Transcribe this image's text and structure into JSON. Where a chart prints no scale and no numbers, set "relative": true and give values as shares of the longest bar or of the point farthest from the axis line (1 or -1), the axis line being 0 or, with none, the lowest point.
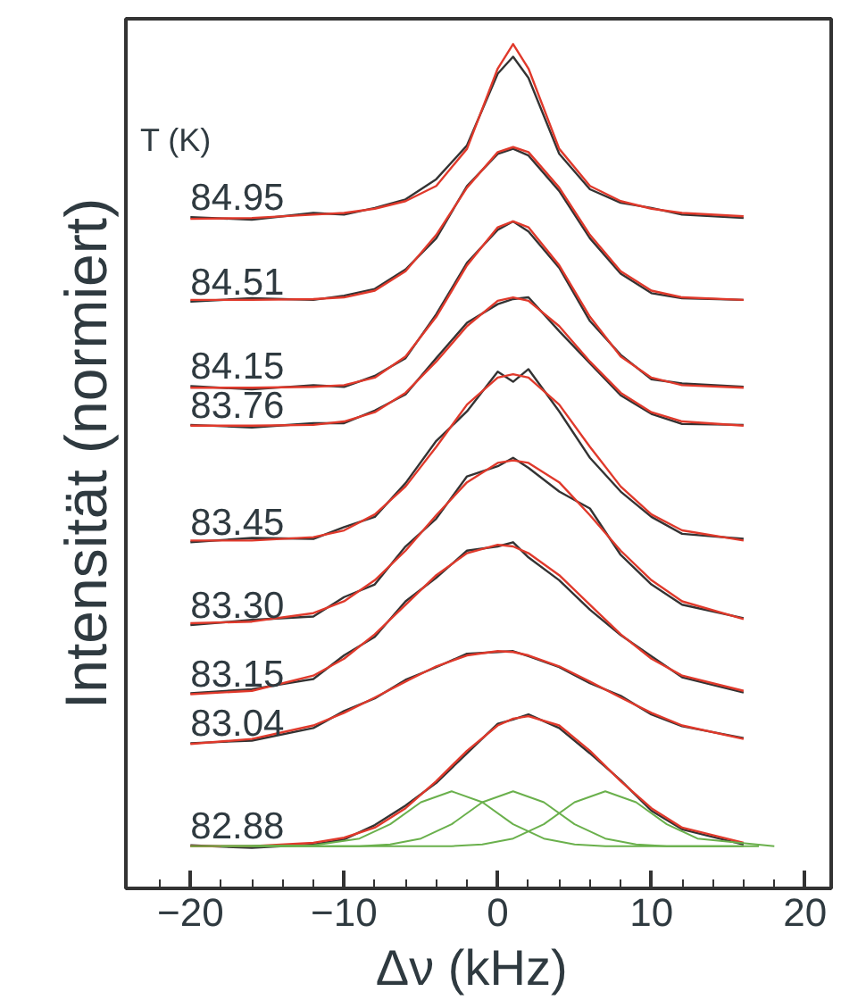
{
  "chart_data": {
    "type": "line",
    "relative": true,
    "xlabel": "Δν  (kHz)",
    "ylabel": "Intensität (normiert)",
    "legend_title": "T (K)",
    "grid": false,
    "line_style": "solid",
    "marker": "none",
    "xlim": [
      -24.2,
      21.7
    ],
    "xticks": [
      -20,
      -10,
      0,
      10,
      20,
      {
        "value": -22,
        "label": null
      },
      {
        "value": -18,
        "label": null
      },
      {
        "value": -16,
        "label": null
      },
      {
        "value": -14,
        "label": null
      },
      {
        "value": -12,
        "label": null
      },
      {
        "value": -8,
        "label": null
      },
      {
        "value": -6,
        "label": null
      },
      {
        "value": -4,
        "label": null
      },
      {
        "value": -2,
        "label": null
      },
      {
        "value": 2,
        "label": null
      },
      {
        "value": 4,
        "label": null
      },
      {
        "value": 6,
        "label": null
      },
      {
        "value": 8,
        "label": null
      },
      {
        "value": 12,
        "label": null
      },
      {
        "value": 14,
        "label": null
      },
      {
        "value": 16,
        "label": null
      },
      {
        "value": 18,
        "label": null
      }
    ],
    "x": [
      -20,
      -16,
      -12,
      -10,
      -8,
      -6,
      -4,
      -2,
      0,
      1,
      2,
      4,
      6,
      8,
      10,
      12,
      16
    ],
    "series": [
      {
        "name": "84.95",
        "color": "#333333",
        "values": [
          0.795,
          0.792,
          0.8,
          0.798,
          0.806,
          0.816,
          0.84,
          0.88,
          0.965,
          0.985,
          0.96,
          0.87,
          0.828,
          0.812,
          0.806,
          0.798,
          0.794
        ]
      },
      {
        "color": "#e0392b",
        "values": [
          0.793,
          0.794,
          0.798,
          0.8,
          0.805,
          0.814,
          0.832,
          0.876,
          0.971,
          1.0,
          0.971,
          0.876,
          0.832,
          0.814,
          0.805,
          0.8,
          0.796
        ]
      },
      {
        "name": "84.51",
        "color": "#333333",
        "values": [
          0.695,
          0.699,
          0.697,
          0.702,
          0.71,
          0.733,
          0.77,
          0.832,
          0.87,
          0.876,
          0.868,
          0.826,
          0.77,
          0.728,
          0.705,
          0.699,
          0.697
        ]
      },
      {
        "color": "#e0392b",
        "values": [
          0.697,
          0.697,
          0.698,
          0.7,
          0.708,
          0.731,
          0.774,
          0.83,
          0.872,
          0.878,
          0.872,
          0.83,
          0.774,
          0.731,
          0.708,
          0.7,
          0.697
        ]
      },
      {
        "name": "84.15",
        "color": "#333333",
        "values": [
          0.595,
          0.591,
          0.596,
          0.594,
          0.607,
          0.628,
          0.68,
          0.741,
          0.78,
          0.79,
          0.778,
          0.735,
          0.672,
          0.632,
          0.603,
          0.598,
          0.594
        ]
      },
      {
        "color": "#e0392b",
        "values": [
          0.593,
          0.593,
          0.594,
          0.596,
          0.605,
          0.63,
          0.677,
          0.738,
          0.783,
          0.79,
          0.783,
          0.738,
          0.677,
          0.63,
          0.605,
          0.596,
          0.593
        ]
      },
      {
        "name": "83.76",
        "color": "#333333",
        "values": [
          0.549,
          0.546,
          0.551,
          0.551,
          0.566,
          0.585,
          0.628,
          0.67,
          0.692,
          0.698,
          0.7,
          0.66,
          0.622,
          0.584,
          0.562,
          0.55,
          0.549
        ]
      },
      {
        "color": "#e0392b",
        "values": [
          0.548,
          0.548,
          0.549,
          0.553,
          0.564,
          0.587,
          0.624,
          0.666,
          0.696,
          0.7,
          0.696,
          0.666,
          0.624,
          0.587,
          0.564,
          0.553,
          0.548
        ]
      },
      {
        "name": "83.45",
        "color": "#333333",
        "values": [
          0.41,
          0.415,
          0.414,
          0.428,
          0.44,
          0.48,
          0.53,
          0.565,
          0.612,
          0.6,
          0.615,
          0.565,
          0.51,
          0.47,
          0.44,
          0.42,
          0.414
        ]
      },
      {
        "color": "#e0392b",
        "values": [
          0.412,
          0.412,
          0.416,
          0.424,
          0.443,
          0.476,
          0.523,
          0.573,
          0.605,
          0.609,
          0.605,
          0.573,
          0.523,
          0.476,
          0.443,
          0.424,
          0.412
        ]
      },
      {
        "name": "83.30",
        "color": "#333333",
        "values": [
          0.312,
          0.318,
          0.322,
          0.345,
          0.36,
          0.405,
          0.438,
          0.488,
          0.5,
          0.51,
          0.498,
          0.47,
          0.45,
          0.395,
          0.36,
          0.336,
          0.32
        ]
      },
      {
        "color": "#e0392b",
        "values": [
          0.314,
          0.316,
          0.326,
          0.34,
          0.365,
          0.4,
          0.442,
          0.481,
          0.504,
          0.507,
          0.504,
          0.481,
          0.442,
          0.4,
          0.365,
          0.34,
          0.319
        ]
      },
      {
        "name": "83.15",
        "color": "#333333",
        "values": [
          0.231,
          0.236,
          0.248,
          0.276,
          0.298,
          0.34,
          0.368,
          0.4,
          0.405,
          0.41,
          0.392,
          0.365,
          0.33,
          0.3,
          0.275,
          0.25,
          0.232
        ]
      },
      {
        "color": "#e0392b",
        "values": [
          0.23,
          0.234,
          0.252,
          0.272,
          0.301,
          0.336,
          0.371,
          0.397,
          0.407,
          0.405,
          0.397,
          0.371,
          0.336,
          0.301,
          0.272,
          0.252,
          0.234
        ]
      },
      {
        "name": "83.04",
        "color": "#333333",
        "values": [
          0.172,
          0.175,
          0.19,
          0.21,
          0.225,
          0.247,
          0.262,
          0.278,
          0.28,
          0.281,
          0.275,
          0.262,
          0.243,
          0.228,
          0.206,
          0.192,
          0.178
        ]
      },
      {
        "color": "#e0392b",
        "values": [
          0.171,
          0.177,
          0.193,
          0.208,
          0.226,
          0.245,
          0.263,
          0.276,
          0.281,
          0.28,
          0.276,
          0.263,
          0.245,
          0.226,
          0.208,
          0.193,
          0.177
        ]
      },
      {
        "name": "82.88",
        "color": "#333333",
        "values": [
          0.051,
          0.048,
          0.052,
          0.058,
          0.075,
          0.098,
          0.125,
          0.16,
          0.195,
          0.2,
          0.206,
          0.19,
          0.16,
          0.128,
          0.092,
          0.07,
          0.052
        ]
      },
      {
        "color": "#e0392b",
        "values": [
          0.05,
          0.05,
          0.054,
          0.06,
          0.072,
          0.095,
          0.127,
          0.163,
          0.193,
          0.201,
          0.204,
          0.193,
          0.163,
          0.127,
          0.095,
          0.072,
          0.054
        ]
      },
      {
        "color": "#6ab04c",
        "x": [
          -20,
          -12,
          -9,
          -7,
          -5,
          -3,
          -1,
          1,
          3,
          5,
          7,
          9,
          11,
          13,
          16
        ],
        "values": [
          0.05,
          0.051,
          0.059,
          0.076,
          0.102,
          0.115,
          0.102,
          0.076,
          0.059,
          0.052,
          0.05,
          0.05,
          0.05,
          0.05,
          0.05
        ]
      },
      {
        "color": "#6ab04c",
        "x": [
          -18,
          -12,
          -9,
          -7,
          -5,
          -3,
          -1,
          1,
          3,
          5,
          7,
          9,
          11,
          13,
          17
        ],
        "values": [
          0.05,
          0.05,
          0.05,
          0.052,
          0.059,
          0.076,
          0.102,
          0.115,
          0.102,
          0.076,
          0.059,
          0.052,
          0.05,
          0.05,
          0.05
        ]
      },
      {
        "color": "#6ab04c",
        "x": [
          -16,
          -12,
          -9,
          -7,
          -5,
          -3,
          -1,
          1,
          3,
          5,
          7,
          9,
          11,
          13,
          18
        ],
        "values": [
          0.05,
          0.05,
          0.05,
          0.05,
          0.05,
          0.05,
          0.052,
          0.059,
          0.076,
          0.102,
          0.115,
          0.102,
          0.076,
          0.059,
          0.05
        ]
      }
    ]
  }
}
